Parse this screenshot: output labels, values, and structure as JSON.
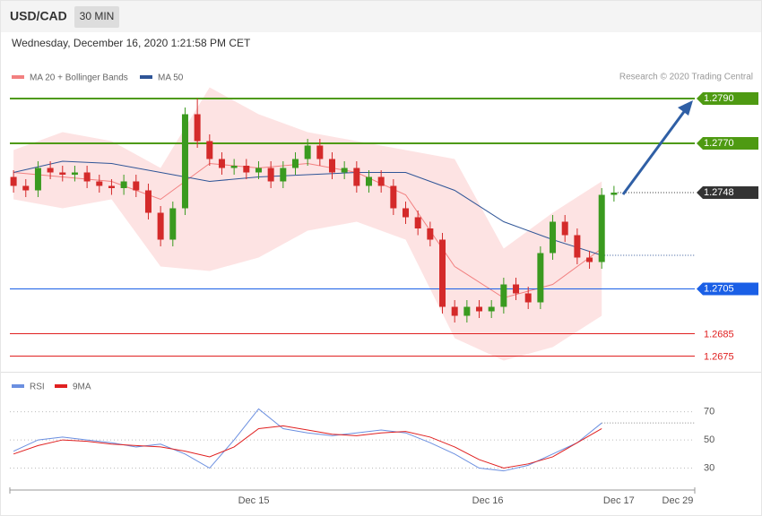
{
  "header": {
    "symbol": "USD/CAD",
    "interval": "30 MIN",
    "datetime": "Wednesday, December 16, 2020 1:21:58 PM CET",
    "credit": "Research © 2020 Trading Central"
  },
  "chart_data": [
    {
      "type": "candlestick",
      "x": [
        0,
        1,
        2,
        3,
        4,
        5,
        6,
        7,
        8,
        9,
        10,
        11,
        12,
        13,
        14,
        15,
        16,
        17,
        18,
        19,
        20,
        21,
        22,
        23,
        24,
        25,
        26,
        27,
        28,
        29,
        30,
        31,
        32,
        33,
        34,
        35,
        36,
        37,
        38,
        39,
        40,
        41,
        42,
        43,
        44,
        45,
        46,
        47,
        48,
        49
      ],
      "open": [
        1.2755,
        1.2751,
        1.2749,
        1.2759,
        1.2757,
        1.2756,
        1.2757,
        1.2753,
        1.2751,
        1.275,
        1.2753,
        1.2749,
        1.2739,
        1.2727,
        1.2741,
        1.2783,
        1.2771,
        1.2763,
        1.2759,
        1.276,
        1.2757,
        1.2759,
        1.2753,
        1.2759,
        1.2763,
        1.2769,
        1.2763,
        1.2757,
        1.2759,
        1.2751,
        1.2755,
        1.2751,
        1.2741,
        1.2737,
        1.2732,
        1.2727,
        1.2697,
        1.2693,
        1.2697,
        1.2695,
        1.2697,
        1.2707,
        1.2703,
        1.2699,
        1.2721,
        1.2735,
        1.2729,
        1.2719,
        1.2717,
        1.2747
      ],
      "high": [
        1.2758,
        1.2754,
        1.2762,
        1.2762,
        1.276,
        1.276,
        1.276,
        1.2756,
        1.2754,
        1.2756,
        1.2756,
        1.2752,
        1.2742,
        1.2744,
        1.2786,
        1.279,
        1.2774,
        1.2766,
        1.2763,
        1.2763,
        1.2762,
        1.2762,
        1.2762,
        1.2766,
        1.2772,
        1.2772,
        1.2766,
        1.2762,
        1.2762,
        1.2758,
        1.2758,
        1.2754,
        1.2744,
        1.274,
        1.2735,
        1.273,
        1.27,
        1.27,
        1.27,
        1.27,
        1.271,
        1.271,
        1.2706,
        1.2724,
        1.2738,
        1.2738,
        1.2732,
        1.2722,
        1.275,
        1.2751
      ],
      "low": [
        1.2748,
        1.2746,
        1.2746,
        1.2754,
        1.2753,
        1.2753,
        1.275,
        1.2748,
        1.2747,
        1.2747,
        1.2746,
        1.2736,
        1.2724,
        1.2724,
        1.2738,
        1.2768,
        1.276,
        1.2756,
        1.2756,
        1.2754,
        1.2754,
        1.275,
        1.275,
        1.2756,
        1.276,
        1.276,
        1.2754,
        1.2754,
        1.2748,
        1.2748,
        1.2748,
        1.2738,
        1.2734,
        1.2729,
        1.2724,
        1.2694,
        1.269,
        1.269,
        1.2692,
        1.2692,
        1.2694,
        1.27,
        1.2696,
        1.2696,
        1.2718,
        1.2726,
        1.2716,
        1.2714,
        1.2714,
        1.2744
      ],
      "close": [
        1.2751,
        1.2749,
        1.2759,
        1.2757,
        1.2756,
        1.2757,
        1.2753,
        1.2751,
        1.275,
        1.2753,
        1.2749,
        1.2739,
        1.2727,
        1.2741,
        1.2783,
        1.2771,
        1.2763,
        1.2759,
        1.276,
        1.2757,
        1.2759,
        1.2753,
        1.2759,
        1.2763,
        1.2769,
        1.2763,
        1.2757,
        1.2759,
        1.2751,
        1.2755,
        1.2751,
        1.2741,
        1.2737,
        1.2732,
        1.2727,
        1.2697,
        1.2693,
        1.2697,
        1.2695,
        1.2697,
        1.2707,
        1.2703,
        1.2699,
        1.2721,
        1.2735,
        1.2729,
        1.2719,
        1.2717,
        1.2747,
        1.2748
      ],
      "up_color": "#3a9a1f",
      "down_color": "#d42a2a",
      "series": [
        {
          "name": "MA 20 + Bollinger Bands",
          "color": "#f28080",
          "band_color": "#fde3e3",
          "x": [
            0,
            4,
            8,
            12,
            16,
            20,
            24,
            28,
            32,
            36,
            40,
            44,
            48
          ],
          "values": [
            1.2757,
            1.2755,
            1.2753,
            1.2745,
            1.2761,
            1.2759,
            1.2761,
            1.2757,
            1.2747,
            1.2715,
            1.2701,
            1.2707,
            1.2723
          ],
          "upper": [
            1.2767,
            1.2775,
            1.2771,
            1.2759,
            1.2795,
            1.2783,
            1.2775,
            1.2771,
            1.2767,
            1.2763,
            1.2723,
            1.2739,
            1.2753
          ],
          "lower": [
            1.2745,
            1.2741,
            1.2745,
            1.2715,
            1.2713,
            1.2719,
            1.2731,
            1.2735,
            1.2727,
            1.2683,
            1.2673,
            1.2679,
            1.2693
          ]
        },
        {
          "name": "MA 50",
          "color": "#2f5597",
          "x": [
            0,
            4,
            8,
            12,
            16,
            20,
            24,
            28,
            32,
            36,
            40,
            44,
            48
          ],
          "values": [
            1.2757,
            1.2762,
            1.2761,
            1.2757,
            1.2753,
            1.2755,
            1.2756,
            1.2757,
            1.2757,
            1.2749,
            1.2735,
            1.2727,
            1.272
          ]
        }
      ],
      "levels": [
        {
          "value": 1.279,
          "label": "1.2790",
          "color": "#4e9a12",
          "line": "solid",
          "box": true
        },
        {
          "value": 1.277,
          "label": "1.2770",
          "color": "#4e9a12",
          "line": "solid",
          "box": true
        },
        {
          "value": 1.2748,
          "label": "1.2748",
          "color": "#333333",
          "line": "dotted",
          "box": true
        },
        {
          "value": 1.2705,
          "label": "1.2705",
          "color": "#1a5fe6",
          "line": "solid",
          "box": true
        },
        {
          "value": 1.2685,
          "label": "1.2685",
          "color": "#e02020",
          "line": "solid",
          "box": false
        },
        {
          "value": 1.2675,
          "label": "1.2675",
          "color": "#e02020",
          "line": "solid",
          "box": false
        }
      ],
      "xlim": [
        -0.3,
        55.3
      ],
      "ylim": [
        1.2668,
        1.2818
      ]
    },
    {
      "type": "line",
      "series": [
        {
          "name": "RSI",
          "color": "#6b8fe0",
          "x": [
            0,
            2,
            4,
            6,
            8,
            10,
            12,
            14,
            16,
            18,
            20,
            22,
            24,
            26,
            28,
            30,
            32,
            34,
            36,
            38,
            40,
            42,
            44,
            46,
            48
          ],
          "values": [
            42,
            50,
            52,
            50,
            48,
            45,
            47,
            40,
            30,
            50,
            72,
            58,
            55,
            53,
            55,
            57,
            55,
            48,
            40,
            30,
            28,
            32,
            40,
            48,
            62
          ]
        },
        {
          "name": "9MA",
          "color": "#e02020",
          "x": [
            0,
            2,
            4,
            6,
            8,
            10,
            12,
            14,
            16,
            18,
            20,
            22,
            24,
            26,
            28,
            30,
            32,
            34,
            36,
            38,
            40,
            42,
            44,
            46,
            48
          ],
          "values": [
            40,
            46,
            50,
            49,
            47,
            46,
            45,
            42,
            38,
            45,
            58,
            60,
            57,
            54,
            53,
            55,
            56,
            52,
            45,
            36,
            30,
            33,
            38,
            48,
            58
          ]
        }
      ],
      "xlim": [
        -0.3,
        55.3
      ],
      "ylim": [
        10,
        85
      ],
      "yticks": [
        30,
        50,
        70
      ],
      "xticks": [
        {
          "value": 19.6,
          "label": "Dec 15"
        },
        {
          "value": 38.7,
          "label": "Dec 16"
        },
        {
          "value": 49.4,
          "label": "Dec 17"
        },
        {
          "value": 54.2,
          "label": "Dec 29"
        }
      ]
    }
  ]
}
